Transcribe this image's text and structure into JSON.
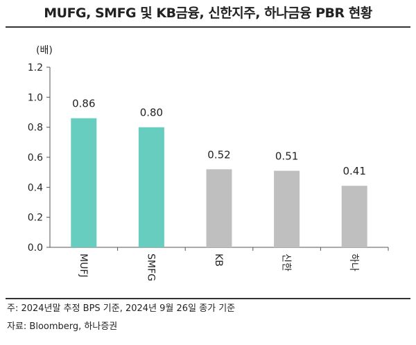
{
  "title": "MUFG, SMFG 및 KB금융, 신한지주, 하나금융 PBR 현황",
  "notes": {
    "note": "주: 2024년말 추정 BPS 기준, 2024년 9월 26일 종가 기준",
    "source": "자료: Bloomberg, 하나증권"
  },
  "colors": {
    "teal": "#66cdbf",
    "gray": "#bfbfbf"
  },
  "chart_data": {
    "type": "bar",
    "title": "MUFG, SMFG 및 KB금융, 신한지주, 하나금융 PBR 현황",
    "ylabel": "(배)",
    "xlabel": "",
    "ylim": [
      0,
      1.2
    ],
    "yticks": [
      "0.0",
      "0.2",
      "0.4",
      "0.6",
      "0.8",
      "1.0",
      "1.2"
    ],
    "grid": false,
    "categories": [
      "MUFJ",
      "SMFG",
      "KB",
      "신한",
      "하나"
    ],
    "values": [
      0.86,
      0.8,
      0.52,
      0.51,
      0.41
    ],
    "value_labels": [
      "0.86",
      "0.80",
      "0.52",
      "0.51",
      "0.41"
    ],
    "bar_colors": [
      "#66cdbf",
      "#66cdbf",
      "#bfbfbf",
      "#bfbfbf",
      "#bfbfbf"
    ]
  }
}
